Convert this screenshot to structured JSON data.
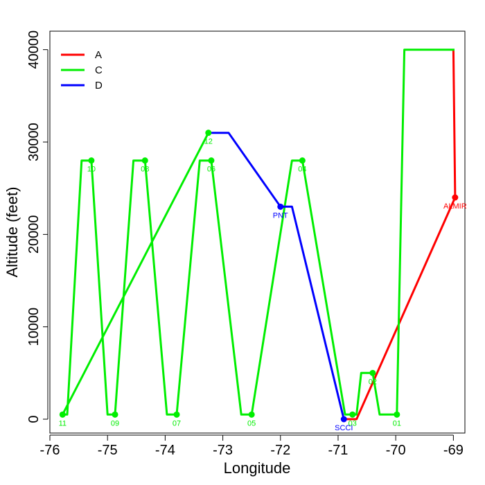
{
  "chart_data": {
    "type": "line",
    "title": "",
    "xlabel": "Longitude",
    "ylabel": "Altitude (feet)",
    "xlim": [
      -76.0,
      -68.8
    ],
    "ylim": [
      -1500,
      42000
    ],
    "xticks": [
      -76,
      -75,
      -74,
      -73,
      -72,
      -71,
      -70,
      -69
    ],
    "xtick_labels": [
      "-76",
      "-75",
      "-74",
      "-73",
      "-72",
      "-71",
      "-70",
      "-69"
    ],
    "yticks": [
      0,
      10000,
      20000,
      30000,
      40000
    ],
    "ytick_labels": [
      "0",
      "10000",
      "20000",
      "30000",
      "40000"
    ],
    "legend": {
      "position": "top-left",
      "entries": [
        "A",
        "C",
        "D"
      ]
    },
    "series": [
      {
        "name": "A",
        "color": "#ff0000",
        "points": [
          {
            "x": -69.0,
            "y": 40000
          },
          {
            "x": -68.97,
            "y": 24000
          },
          {
            "x": -70.68,
            "y": 0
          },
          {
            "x": -70.85,
            "y": 0
          }
        ],
        "markers": [
          {
            "x": -68.97,
            "y": 24000,
            "label": "ALMIR"
          }
        ]
      },
      {
        "name": "C",
        "color": "#00ee00",
        "points": [
          {
            "x": -68.98,
            "y": 40000
          },
          {
            "x": -69.85,
            "y": 40000
          },
          {
            "x": -69.98,
            "y": 500
          },
          {
            "x": -70.28,
            "y": 500
          },
          {
            "x": -70.4,
            "y": 5000
          },
          {
            "x": -70.6,
            "y": 5000
          },
          {
            "x": -70.68,
            "y": 500
          },
          {
            "x": -70.88,
            "y": 500
          },
          {
            "x": -71.62,
            "y": 28000
          },
          {
            "x": -71.8,
            "y": 28000
          },
          {
            "x": -72.5,
            "y": 500
          },
          {
            "x": -72.68,
            "y": 500
          },
          {
            "x": -73.2,
            "y": 28000
          },
          {
            "x": -73.4,
            "y": 28000
          },
          {
            "x": -73.8,
            "y": 500
          },
          {
            "x": -73.97,
            "y": 500
          },
          {
            "x": -74.35,
            "y": 28000
          },
          {
            "x": -74.55,
            "y": 28000
          },
          {
            "x": -74.87,
            "y": 500
          },
          {
            "x": -75.0,
            "y": 500
          },
          {
            "x": -75.28,
            "y": 28000
          },
          {
            "x": -75.45,
            "y": 28000
          },
          {
            "x": -75.7,
            "y": 500
          },
          {
            "x": -75.78,
            "y": 500
          },
          {
            "x": -73.25,
            "y": 31000
          }
        ],
        "markers": [
          {
            "x": -69.98,
            "y": 500,
            "label": "01"
          },
          {
            "x": -70.4,
            "y": 5000,
            "label": "02"
          },
          {
            "x": -70.75,
            "y": 500,
            "label": "03"
          },
          {
            "x": -71.62,
            "y": 28000,
            "label": "04"
          },
          {
            "x": -72.5,
            "y": 500,
            "label": "05"
          },
          {
            "x": -73.2,
            "y": 28000,
            "label": "06"
          },
          {
            "x": -73.8,
            "y": 500,
            "label": "07"
          },
          {
            "x": -74.35,
            "y": 28000,
            "label": "08"
          },
          {
            "x": -74.87,
            "y": 500,
            "label": "09"
          },
          {
            "x": -75.28,
            "y": 28000,
            "label": "10"
          },
          {
            "x": -75.78,
            "y": 500,
            "label": "11"
          },
          {
            "x": -73.25,
            "y": 31000,
            "label": "12"
          }
        ]
      },
      {
        "name": "D",
        "color": "#0000ff",
        "points": [
          {
            "x": -73.25,
            "y": 31000
          },
          {
            "x": -72.9,
            "y": 31000
          },
          {
            "x": -72.0,
            "y": 23000
          },
          {
            "x": -71.8,
            "y": 23000
          },
          {
            "x": -70.9,
            "y": 0
          }
        ],
        "markers": [
          {
            "x": -72.0,
            "y": 23000,
            "label": "PNT"
          },
          {
            "x": -70.9,
            "y": 0,
            "label": "SCCI"
          }
        ]
      }
    ]
  }
}
